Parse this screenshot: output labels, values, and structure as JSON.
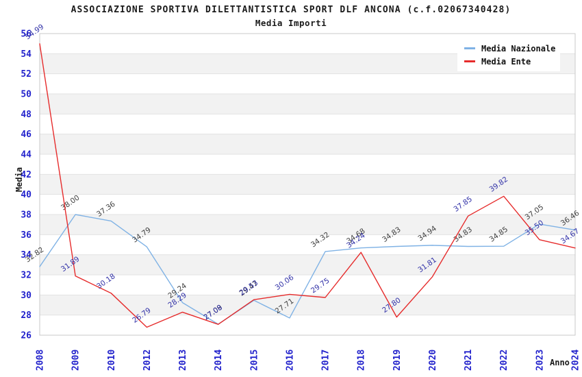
{
  "header": {
    "title": "ASSOCIAZIONE SPORTIVA DILETTANTISTICA SPORT DLF ANCONA (c.f.02067340428)",
    "subtitle": "Media Importi"
  },
  "colors": {
    "axis_tick_text": "#2222cc",
    "band_gray": "#f2f2f2",
    "band_white": "#ffffff",
    "gridline": "#e2e2e2",
    "plot_border": "#c9c9c9",
    "title_text": "#1a1a1a"
  },
  "chart_data": {
    "type": "line",
    "title": "ASSOCIAZIONE SPORTIVA DILETTANTISTICA SPORT DLF ANCONA (c.f.02067340428)",
    "subtitle": "Media Importi",
    "xlabel": "Anno",
    "ylabel": "Media",
    "ylim": [
      26,
      56
    ],
    "ytick_step": 2,
    "grid": true,
    "banded_background": true,
    "legend_position": "top-right",
    "categories": [
      "2008",
      "2009",
      "2010",
      "2012",
      "2013",
      "2014",
      "2015",
      "2016",
      "2017",
      "2018",
      "2019",
      "2020",
      "2021",
      "2022",
      "2023",
      "2024"
    ],
    "series": [
      {
        "name": "Media Nazionale",
        "color": "#7fb2e5",
        "label_color": "#404040",
        "values": [
          32.82,
          38.0,
          37.36,
          34.79,
          29.24,
          27.09,
          29.47,
          27.71,
          34.32,
          34.68,
          34.83,
          34.94,
          34.83,
          34.85,
          37.05,
          36.46
        ]
      },
      {
        "name": "Media Ente",
        "color": "#e62b2b",
        "label_color": "#3232a8",
        "values": [
          54.99,
          31.89,
          30.18,
          26.79,
          28.29,
          27.08,
          29.53,
          30.06,
          29.75,
          34.24,
          27.8,
          31.81,
          37.85,
          39.82,
          35.5,
          34.67
        ]
      }
    ]
  }
}
